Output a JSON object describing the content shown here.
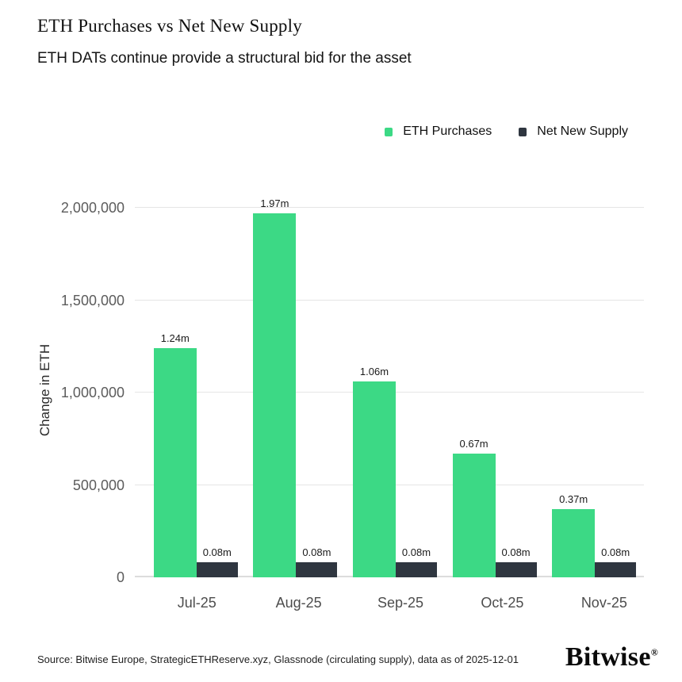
{
  "header": {
    "title": "ETH Purchases vs Net New Supply",
    "subtitle": "ETH DATs continue provide a structural bid for the asset"
  },
  "legend": [
    {
      "label": "ETH Purchases",
      "color": "#3cd985"
    },
    {
      "label": "Net New Supply",
      "color": "#2f3640"
    }
  ],
  "chart_data": {
    "type": "bar",
    "categories": [
      "Jul-25",
      "Aug-25",
      "Sep-25",
      "Oct-25",
      "Nov-25"
    ],
    "series": [
      {
        "name": "ETH Purchases",
        "color": "#3cd985",
        "values": [
          1240000,
          1970000,
          1060000,
          670000,
          370000
        ],
        "labels": [
          "1.24m",
          "1.97m",
          "1.06m",
          "0.67m",
          "0.37m"
        ]
      },
      {
        "name": "Net New Supply",
        "color": "#2f3640",
        "values": [
          80000,
          80000,
          80000,
          80000,
          80000
        ],
        "labels": [
          "0.08m",
          "0.08m",
          "0.08m",
          "0.08m",
          "0.08m"
        ]
      }
    ],
    "title": "ETH Purchases vs Net New Supply",
    "xlabel": "",
    "ylabel": "Change in ETH",
    "ylim": [
      0,
      2000000
    ],
    "yticks": [
      {
        "value": 0,
        "label": "0"
      },
      {
        "value": 500000,
        "label": "500,000"
      },
      {
        "value": 1000000,
        "label": "1,000,000"
      },
      {
        "value": 1500000,
        "label": "1,500,000"
      },
      {
        "value": 2000000,
        "label": "2,000,000"
      }
    ],
    "grid": true,
    "legend_position": "top-right"
  },
  "footer": {
    "source": "Source: Bitwise Europe, StrategicETHReserve.xyz, Glassnode (circulating supply), data as of 2025-12-01",
    "logo": "Bitwise",
    "logo_registered": "®"
  }
}
